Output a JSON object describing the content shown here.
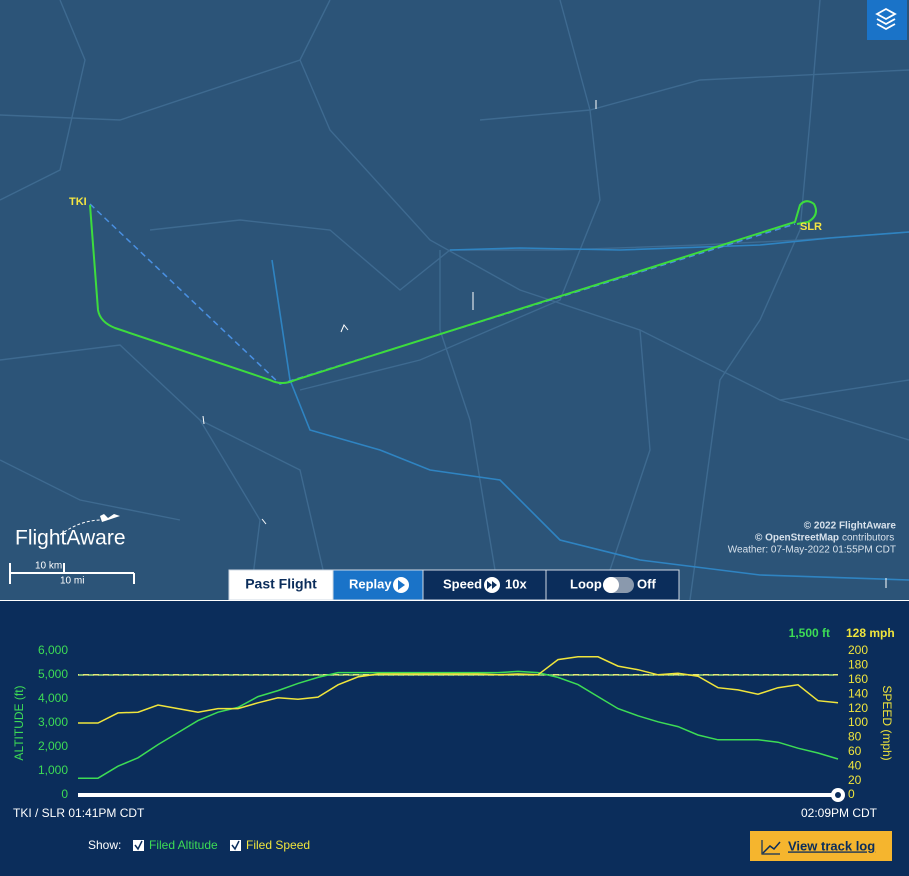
{
  "map": {
    "origin": "TKI",
    "destination": "SLR",
    "logo": "FlightAware",
    "scale_km": "10 km",
    "scale_mi": "10 mi",
    "copyright": "© 2022 FlightAware",
    "osm": "© OpenStreetMap",
    "osm_suffix": "contributors",
    "weather": "Weather: 07-May-2022 01:55PM CDT"
  },
  "controls": {
    "past_flight": "Past Flight",
    "replay": "Replay",
    "speed": "Speed",
    "speed_value": "10x",
    "loop": "Loop",
    "loop_state": "Off"
  },
  "chart_data": {
    "type": "line",
    "ylabel": "ALTITUDE (ft)",
    "y2label": "SPEED (mph)",
    "ylim": [
      0,
      6000
    ],
    "yticks": [
      0,
      {
        "value": 1000,
        "label": "1,000"
      },
      {
        "value": 2000,
        "label": "2,000"
      },
      {
        "value": 3000,
        "label": "3,000"
      },
      {
        "value": 4000,
        "label": "4,000"
      },
      {
        "value": 5000,
        "label": "5,000"
      },
      {
        "value": 6000,
        "label": "6,000"
      }
    ],
    "y2lim": [
      0,
      200
    ],
    "y2ticks": [
      0,
      20,
      40,
      60,
      80,
      100,
      120,
      140,
      160,
      180,
      200
    ],
    "start_label": "TKI / SLR 01:41PM CDT",
    "end_label": "02:09PM CDT",
    "series": [
      {
        "color": "#3ddc55",
        "current_label": "1,500 ft",
        "values": [
          700,
          700,
          1200,
          1550,
          2100,
          2600,
          3100,
          3450,
          3650,
          4100,
          4350,
          4650,
          4900,
          5100,
          5100,
          5100,
          5100,
          5100,
          5100,
          5100,
          5100,
          5100,
          5150,
          5100,
          4900,
          4600,
          4100,
          3600,
          3300,
          3050,
          2850,
          2500,
          2300,
          2300,
          2300,
          2200,
          1950,
          1750,
          1500
        ]
      },
      {
        "color": "#f0e53c",
        "axis": "y2",
        "current_label": "128 mph",
        "values": [
          100,
          100,
          114,
          115,
          125,
          120,
          115,
          120,
          120,
          128,
          135,
          133,
          136,
          153,
          164,
          168,
          168,
          168,
          168,
          168,
          168,
          167,
          168,
          167,
          188,
          192,
          192,
          179,
          174,
          167,
          169,
          165,
          149,
          146,
          140,
          149,
          153,
          131,
          128
        ]
      }
    ],
    "filed": [
      {
        "name": "Filed Altitude",
        "value": 5000,
        "color": "#9be07a"
      },
      {
        "name": "Filed Speed",
        "value": 167,
        "axis": "y2",
        "color": "#e8e87a"
      }
    ]
  },
  "footer": {
    "show": "Show:",
    "track_log": "View track log"
  }
}
